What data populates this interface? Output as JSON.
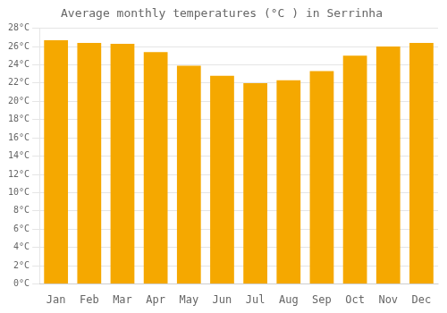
{
  "chart_data": {
    "type": "bar",
    "title": "Average monthly temperatures (°C ) in Serrinha",
    "categories": [
      "Jan",
      "Feb",
      "Mar",
      "Apr",
      "May",
      "Jun",
      "Jul",
      "Aug",
      "Sep",
      "Oct",
      "Nov",
      "Dec"
    ],
    "values": [
      26.7,
      26.4,
      26.3,
      25.4,
      23.9,
      22.8,
      22.0,
      22.3,
      23.3,
      25.0,
      26.0,
      26.4
    ],
    "color": "#F5A800",
    "ylim": [
      0,
      28
    ],
    "yticks": [
      {
        "value": 0,
        "label": "0°C"
      },
      {
        "value": 2,
        "label": "2°C"
      },
      {
        "value": 4,
        "label": "4°C"
      },
      {
        "value": 6,
        "label": "6°C"
      },
      {
        "value": 8,
        "label": "8°C"
      },
      {
        "value": 10,
        "label": "10°C"
      },
      {
        "value": 12,
        "label": "12°C"
      },
      {
        "value": 14,
        "label": "14°C"
      },
      {
        "value": 16,
        "label": "16°C"
      },
      {
        "value": 18,
        "label": "18°C"
      },
      {
        "value": 20,
        "label": "20°C"
      },
      {
        "value": 22,
        "label": "22°C"
      },
      {
        "value": 24,
        "label": "24°C"
      },
      {
        "value": 26,
        "label": "26°C"
      },
      {
        "value": 28,
        "label": "28°C"
      }
    ],
    "grid": true
  }
}
